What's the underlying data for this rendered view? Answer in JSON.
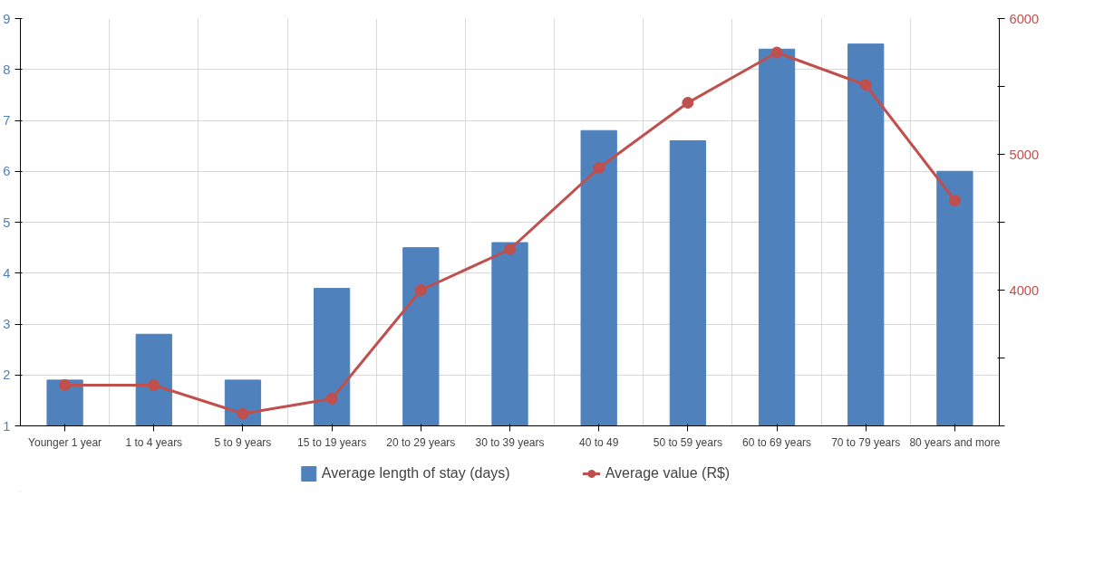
{
  "chart_data": {
    "type": "bar",
    "categories": [
      "Younger 1 year",
      "1 to 4 years",
      "5 to 9 years",
      "15 to 19 years",
      "20 to 29 years",
      "30 to 39 years",
      "40 to 49",
      "50 to 59 years",
      "60 to 69 years",
      "70 to 79 years",
      "80 years and more"
    ],
    "series": [
      {
        "name": "Average length of stay (days)",
        "type": "bar",
        "color": "#4f81bd",
        "values": [
          1.9,
          2.8,
          1.9,
          3.7,
          4.5,
          4.6,
          6.8,
          6.6,
          8.4,
          8.5,
          6.0
        ]
      },
      {
        "name": "Average value (R$)",
        "type": "line",
        "axis": "y2",
        "color": "#c0504d",
        "values": [
          3300,
          3300,
          3090,
          3200,
          4000,
          4300,
          4900,
          5380,
          5750,
          5510,
          4660
        ]
      }
    ],
    "ylim": [
      1,
      9
    ],
    "yticks": [
      1,
      2,
      3,
      4,
      5,
      6,
      7,
      8,
      9
    ],
    "y2lim": [
      3000,
      6000
    ],
    "y2ticks": [
      {
        "value": 3000,
        "label": null
      },
      {
        "value": 3500,
        "label": null
      },
      4000,
      {
        "value": 4500,
        "label": null
      },
      5000,
      {
        "value": 5500,
        "label": null
      },
      6000
    ],
    "grid": true,
    "legend": "bottom",
    "marker": "circle",
    "line_style": "solid"
  }
}
